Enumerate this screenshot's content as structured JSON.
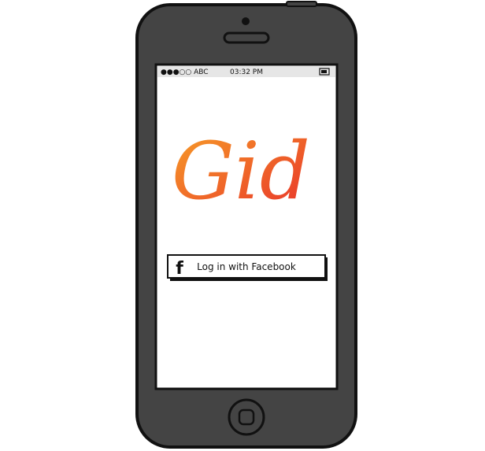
{
  "status_bar": {
    "carrier": "●●●○○ ABC",
    "time": "03:32 PM"
  },
  "logo": "Gid",
  "button": {
    "icon": "f",
    "label": "Log in with Facebook"
  }
}
